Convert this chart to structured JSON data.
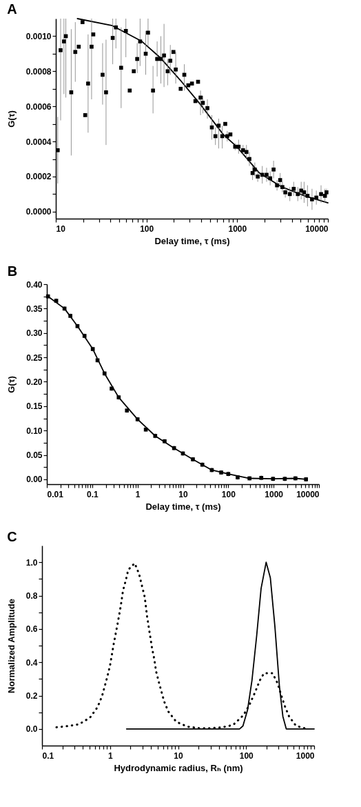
{
  "chart_data": [
    {
      "type": "scatter",
      "title": "A",
      "xlabel": "Delay time, τ (ms)",
      "ylabel": "G(τ)",
      "log": "x",
      "xlim": [
        10,
        10000
      ],
      "xticks": [
        10,
        {
          "value": 20,
          "label": null
        },
        {
          "value": 30,
          "label": null
        },
        {
          "value": 40,
          "label": null
        },
        {
          "value": 50,
          "label": null
        },
        {
          "value": 60,
          "label": null
        },
        {
          "value": 70,
          "label": null
        },
        {
          "value": 80,
          "label": null
        },
        {
          "value": 90,
          "label": null
        },
        100,
        {
          "value": 200,
          "label": null
        },
        {
          "value": 300,
          "label": null
        },
        {
          "value": 400,
          "label": null
        },
        {
          "value": 500,
          "label": null
        },
        {
          "value": 600,
          "label": null
        },
        {
          "value": 700,
          "label": null
        },
        {
          "value": 800,
          "label": null
        },
        {
          "value": 900,
          "label": null
        },
        1000,
        {
          "value": 2000,
          "label": null
        },
        {
          "value": 3000,
          "label": null
        },
        {
          "value": 4000,
          "label": null
        },
        {
          "value": 5000,
          "label": null
        },
        {
          "value": 6000,
          "label": null
        },
        {
          "value": 7000,
          "label": null
        },
        {
          "value": 8000,
          "label": null
        },
        {
          "value": 9000,
          "label": null
        },
        10000
      ],
      "ylim": [
        -4e-05,
        0.0011
      ],
      "yticks": [
        {
          "value": 0,
          "label": "0.0000"
        },
        {
          "value": 0.0001,
          "label": null
        },
        {
          "value": 0.0002,
          "label": "0.0002"
        },
        {
          "value": 0.0003,
          "label": null
        },
        {
          "value": 0.0004,
          "label": "0.0004"
        },
        {
          "value": 0.0005,
          "label": null
        },
        {
          "value": 0.0006,
          "label": "0.0006"
        },
        {
          "value": 0.0007,
          "label": null
        },
        {
          "value": 0.0008,
          "label": "0.0008"
        },
        {
          "value": 0.0009,
          "label": null
        },
        {
          "value": 0.001,
          "label": "0.0010"
        }
      ],
      "series": [
        {
          "marker": "square",
          "color": "#000000",
          "x": [
            10.5,
            11.3,
            12.3,
            12.9,
            14.8,
            16.4,
            17.9,
            19.7,
            21.1,
            22.7,
            24.8,
            25.9,
            32.8,
            35.8,
            42.4,
            46,
            52.5,
            59.2,
            65.3,
            72.4,
            78.9,
            85,
            98,
            104,
            118,
            131,
            144,
            156,
            171,
            183,
            198,
            210,
            238,
            261,
            289,
            317,
            346,
            370,
            394,
            418,
            469,
            525,
            575,
            624,
            684,
            738,
            776,
            841,
            949,
            1035,
            1160,
            1264,
            1362,
            1476,
            1563,
            1684,
            1888,
            2108,
            2308,
            2517,
            2746,
            2973,
            3148,
            3390,
            3802,
            4195,
            4653,
            5073,
            5463,
            5956,
            6676,
            7447,
            8400,
            9268,
            9640
          ],
          "values": [
            0.00035,
            0.00092,
            0.00097,
            0.001,
            0.00068,
            0.00091,
            0.00094,
            0.00108,
            0.00055,
            0.00073,
            0.00094,
            0.00101,
            0.00078,
            0.00068,
            0.00099,
            0.00105,
            0.00082,
            0.00103,
            0.00069,
            0.0008,
            0.00087,
            0.00097,
            0.0009,
            0.00102,
            0.00069,
            0.00087,
            0.00087,
            0.00089,
            0.0008,
            0.00086,
            0.00091,
            0.00081,
            0.0007,
            0.00078,
            0.00072,
            0.00073,
            0.00063,
            0.00074,
            0.00065,
            0.00062,
            0.00059,
            0.00048,
            0.00043,
            0.00049,
            0.00043,
            0.0005,
            0.00043,
            0.00044,
            0.00037,
            0.00037,
            0.00035,
            0.00034,
            0.0003,
            0.00022,
            0.00024,
            0.0002,
            0.00021,
            0.00021,
            0.00019,
            0.00024,
            0.00015,
            0.00018,
            0.00014,
            0.00011,
            0.0001,
            0.00013,
            0.0001,
            0.00012,
            0.00011,
            9e-05,
            7e-05,
            8e-05,
            0.0001,
            9e-05,
            0.00011
          ],
          "errors": [
            [
              0.00016,
              0.00054
            ],
            [
              0.00052,
              0.0011
            ],
            [
              0.00067,
              0.0011
            ],
            [
              0.00065,
              0.0011
            ],
            [
              0.00032,
              0.00104
            ],
            [
              0.00074,
              0.00108
            ],
            null,
            null,
            null,
            [
              0.00045,
              0.00101
            ],
            [
              0.00064,
              0.0011
            ],
            null,
            [
              0.00061,
              0.00096
            ],
            [
              0.00038,
              0.00098
            ],
            [
              0.00084,
              0.0011
            ],
            [
              0.00093,
              0.0011
            ],
            [
              0.00059,
              0.00105
            ],
            [
              0.00088,
              0.0011
            ],
            null,
            null,
            [
              0.00079,
              0.00096
            ],
            [
              0.00083,
              0.0011
            ],
            [
              0.00078,
              0.00103
            ],
            [
              0.00094,
              0.0011
            ],
            [
              0.00056,
              0.00083
            ],
            [
              0.00077,
              0.00097
            ],
            [
              0.00073,
              0.001
            ],
            [
              0.00071,
              0.00107
            ],
            [
              0.00072,
              0.00087
            ],
            [
              0.00078,
              0.00095
            ],
            null,
            [
              0.00073,
              0.00091
            ],
            null,
            [
              0.00069,
              0.00084
            ],
            null,
            null,
            null,
            null,
            [
              0.00055,
              0.00069
            ],
            [
              0.00056,
              0.00066
            ],
            [
              0.00053,
              0.00064
            ],
            [
              0.00041,
              0.00055
            ],
            [
              0.00038,
              0.00048
            ],
            [
              0.00036,
              0.00053
            ],
            [
              0.00036,
              0.00049
            ],
            null,
            [
              0.0004,
              0.00046
            ],
            null,
            2e-05,
            4e-05,
            3e-05,
            4e-05,
            4e-05,
            4e-05,
            4e-05,
            3e-05,
            5e-05,
            4e-05,
            4e-05,
            5e-05,
            3e-05,
            4e-05,
            3e-05,
            3e-05,
            4e-05,
            4e-05,
            4e-05,
            5e-05,
            6e-05,
            6e-05,
            6e-05,
            4e-05,
            5e-05,
            4e-05,
            2e-05
          ]
        },
        {
          "type": "line",
          "color": "#000000",
          "line_style": "solid",
          "x": [
            17.3,
            42,
            89,
            140,
            235,
            394,
            700,
            988,
            1754,
            3113,
            5520,
            10000
          ],
          "values": [
            0.0011,
            0.00106,
            0.00097,
            0.00088,
            0.00075,
            0.00061,
            0.00044,
            0.00037,
            0.00022,
            0.00014,
            9e-05,
            5e-05
          ]
        }
      ]
    },
    {
      "type": "scatter",
      "title": "B",
      "xlabel": "Delay time, τ (ms)",
      "ylabel": "G(τ)",
      "log": "x",
      "xlim": [
        0.01,
        10000
      ],
      "xticks": [
        0.01,
        {
          "value": 0.02,
          "label": null
        },
        {
          "value": 0.03,
          "label": null
        },
        {
          "value": 0.04,
          "label": null
        },
        {
          "value": 0.05,
          "label": null
        },
        {
          "value": 0.06,
          "label": null
        },
        {
          "value": 0.07,
          "label": null
        },
        {
          "value": 0.08,
          "label": null
        },
        {
          "value": 0.09,
          "label": null
        },
        0.1,
        {
          "value": 0.2,
          "label": null
        },
        {
          "value": 0.3,
          "label": null
        },
        {
          "value": 0.4,
          "label": null
        },
        {
          "value": 0.5,
          "label": null
        },
        {
          "value": 0.6,
          "label": null
        },
        {
          "value": 0.7,
          "label": null
        },
        {
          "value": 0.8,
          "label": null
        },
        {
          "value": 0.9,
          "label": null
        },
        1,
        {
          "value": 2,
          "label": null
        },
        {
          "value": 3,
          "label": null
        },
        {
          "value": 4,
          "label": null
        },
        {
          "value": 5,
          "label": null
        },
        {
          "value": 6,
          "label": null
        },
        {
          "value": 7,
          "label": null
        },
        {
          "value": 8,
          "label": null
        },
        {
          "value": 9,
          "label": null
        },
        10,
        {
          "value": 20,
          "label": null
        },
        {
          "value": 30,
          "label": null
        },
        {
          "value": 40,
          "label": null
        },
        {
          "value": 50,
          "label": null
        },
        {
          "value": 60,
          "label": null
        },
        {
          "value": 70,
          "label": null
        },
        {
          "value": 80,
          "label": null
        },
        {
          "value": 90,
          "label": null
        },
        100,
        {
          "value": 200,
          "label": null
        },
        {
          "value": 300,
          "label": null
        },
        {
          "value": 400,
          "label": null
        },
        {
          "value": 500,
          "label": null
        },
        {
          "value": 600,
          "label": null
        },
        {
          "value": 700,
          "label": null
        },
        {
          "value": 800,
          "label": null
        },
        {
          "value": 900,
          "label": null
        },
        1000,
        {
          "value": 2000,
          "label": null
        },
        {
          "value": 3000,
          "label": null
        },
        {
          "value": 4000,
          "label": null
        },
        {
          "value": 5000,
          "label": null
        },
        {
          "value": 6000,
          "label": null
        },
        {
          "value": 7000,
          "label": null
        },
        {
          "value": 8000,
          "label": null
        },
        {
          "value": 9000,
          "label": null
        },
        10000
      ],
      "ylim": [
        -0.01,
        0.4
      ],
      "yticks": [
        {
          "value": 0,
          "label": "0.00"
        },
        {
          "value": 0.025,
          "label": null
        },
        {
          "value": 0.05,
          "label": "0.05"
        },
        {
          "value": 0.075,
          "label": null
        },
        {
          "value": 0.1,
          "label": "0.10"
        },
        {
          "value": 0.125,
          "label": null
        },
        {
          "value": 0.15,
          "label": "0.15"
        },
        {
          "value": 0.175,
          "label": null
        },
        {
          "value": 0.2,
          "label": "0.20"
        },
        {
          "value": 0.225,
          "label": null
        },
        {
          "value": 0.25,
          "label": "0.25"
        },
        {
          "value": 0.275,
          "label": null
        },
        {
          "value": 0.3,
          "label": "0.30"
        },
        {
          "value": 0.325,
          "label": null
        },
        {
          "value": 0.35,
          "label": "0.35"
        },
        {
          "value": 0.375,
          "label": null
        },
        {
          "value": 0.4,
          "label": "0.40"
        }
      ],
      "series": [
        {
          "marker": "square",
          "color": "#000000",
          "x": [
            0.0106,
            0.0161,
            0.0245,
            0.033,
            0.0473,
            0.0677,
            0.103,
            0.131,
            0.187,
            0.268,
            0.384,
            0.583,
            1,
            1.52,
            2.45,
            3.95,
            6.38,
            10,
            16.6,
            26.8,
            43.3,
            69.8,
            100,
            161,
            294,
            534,
            970,
            1766,
            3027,
            5180
          ],
          "values": [
            0.375,
            0.366,
            0.35,
            0.335,
            0.314,
            0.294,
            0.267,
            0.244,
            0.217,
            0.186,
            0.168,
            0.141,
            0.123,
            0.102,
            0.089,
            0.078,
            0.064,
            0.053,
            0.041,
            0.03,
            0.019,
            0.014,
            0.011,
            0.004,
            0.002,
            0.003,
            0.001,
            0.001,
            0.002,
            0
          ],
          "errors": [
            0.005,
            0.005,
            0.005,
            0.005,
            0.005,
            0.005,
            0.005,
            0.005,
            0.005,
            0.005,
            0.005,
            0.005,
            0.005,
            0.005,
            0.005,
            0.005,
            0.005,
            0.005,
            0.005,
            0.005,
            0.005,
            0.005,
            0.005,
            0.005,
            0.005,
            0.005,
            0.005,
            0.005,
            0.005,
            0.005
          ]
        },
        {
          "type": "line",
          "color": "#000000",
          "line_style": "solid",
          "x": [
            0.0106,
            0.0245,
            0.0473,
            0.103,
            0.187,
            0.384,
            1,
            2.45,
            6.38,
            16.6,
            43.3,
            100,
            294,
            970,
            3027,
            5180
          ],
          "values": [
            0.375,
            0.35,
            0.314,
            0.267,
            0.217,
            0.168,
            0.123,
            0.089,
            0.064,
            0.041,
            0.019,
            0.011,
            0.002,
            0.001,
            0.002,
            0
          ]
        }
      ]
    },
    {
      "type": "line",
      "title": "C",
      "xlabel": "Hydrodynamic radius, Rₕ (nm)",
      "ylabel": "Normalized Amplitude",
      "log": "x",
      "xlim": [
        0.1,
        1000
      ],
      "xticks": [
        0.1,
        {
          "value": 0.2,
          "label": null
        },
        {
          "value": 0.3,
          "label": null
        },
        {
          "value": 0.4,
          "label": null
        },
        {
          "value": 0.5,
          "label": null
        },
        {
          "value": 0.6,
          "label": null
        },
        {
          "value": 0.7,
          "label": null
        },
        {
          "value": 0.8,
          "label": null
        },
        {
          "value": 0.9,
          "label": null
        },
        1,
        {
          "value": 2,
          "label": null
        },
        {
          "value": 3,
          "label": null
        },
        {
          "value": 4,
          "label": null
        },
        {
          "value": 5,
          "label": null
        },
        {
          "value": 6,
          "label": null
        },
        {
          "value": 7,
          "label": null
        },
        {
          "value": 8,
          "label": null
        },
        {
          "value": 9,
          "label": null
        },
        10,
        {
          "value": 20,
          "label": null
        },
        {
          "value": 30,
          "label": null
        },
        {
          "value": 40,
          "label": null
        },
        {
          "value": 50,
          "label": null
        },
        {
          "value": 60,
          "label": null
        },
        {
          "value": 70,
          "label": null
        },
        {
          "value": 80,
          "label": null
        },
        {
          "value": 90,
          "label": null
        },
        100,
        {
          "value": 200,
          "label": null
        },
        {
          "value": 300,
          "label": null
        },
        {
          "value": 400,
          "label": null
        },
        {
          "value": 500,
          "label": null
        },
        {
          "value": 600,
          "label": null
        },
        {
          "value": 700,
          "label": null
        },
        {
          "value": 800,
          "label": null
        },
        {
          "value": 900,
          "label": null
        },
        1000
      ],
      "ylim": [
        -0.1,
        1.1
      ],
      "yticks": [
        {
          "value": 0,
          "label": "0.0"
        },
        {
          "value": 0.1,
          "label": null
        },
        {
          "value": 0.2,
          "label": "0.2"
        },
        {
          "value": 0.3,
          "label": null
        },
        {
          "value": 0.4,
          "label": "0.4"
        },
        {
          "value": 0.5,
          "label": null
        },
        {
          "value": 0.6,
          "label": "0.6"
        },
        {
          "value": 0.7,
          "label": null
        },
        {
          "value": 0.8,
          "label": "0.8"
        },
        {
          "value": 0.9,
          "label": null
        },
        {
          "value": 1,
          "label": "1.0"
        }
      ],
      "series": [
        {
          "color": "#000000",
          "line_style": "solid",
          "x": [
            1.75,
            80,
            89.8,
            105,
            122,
            143,
            166,
            197,
            227,
            265,
            309,
            347,
            389,
            1000
          ],
          "values": [
            0,
            0,
            0.018,
            0.114,
            0.293,
            0.56,
            0.843,
            1,
            0.907,
            0.613,
            0.254,
            0.075,
            0,
            0
          ]
        },
        {
          "color": "#000000",
          "line_style": "dotted",
          "x": [
            0.163,
            0.238,
            0.35,
            0.507,
            0.653,
            0.763,
            0.918,
            1,
            1.14,
            1.3,
            1.44,
            1.55,
            1.71,
            1.85,
            2.3,
            2.67,
            2.93,
            3.23,
            3.5,
            3.72,
            4.14,
            4.47,
            4.76,
            5.22,
            5.65,
            6.24,
            7.17,
            9.4,
            13.7,
            20.2,
            29.7,
            43.7,
            64.4,
            91.2,
            111,
            132,
            160,
            183,
            245,
            290,
            326,
            369,
            428,
            543,
            793
          ],
          "values": [
            0.01,
            0.017,
            0.028,
            0.068,
            0.13,
            0.197,
            0.318,
            0.382,
            0.517,
            0.638,
            0.74,
            0.83,
            0.894,
            0.955,
            0.994,
            0.93,
            0.862,
            0.792,
            0.676,
            0.606,
            0.485,
            0.418,
            0.344,
            0.28,
            0.229,
            0.165,
            0.105,
            0.043,
            0.014,
            0.005,
            0.005,
            0.009,
            0.024,
            0.082,
            0.142,
            0.21,
            0.293,
            0.334,
            0.334,
            0.274,
            0.206,
            0.139,
            0.075,
            0.018,
            0
          ]
        }
      ]
    }
  ]
}
